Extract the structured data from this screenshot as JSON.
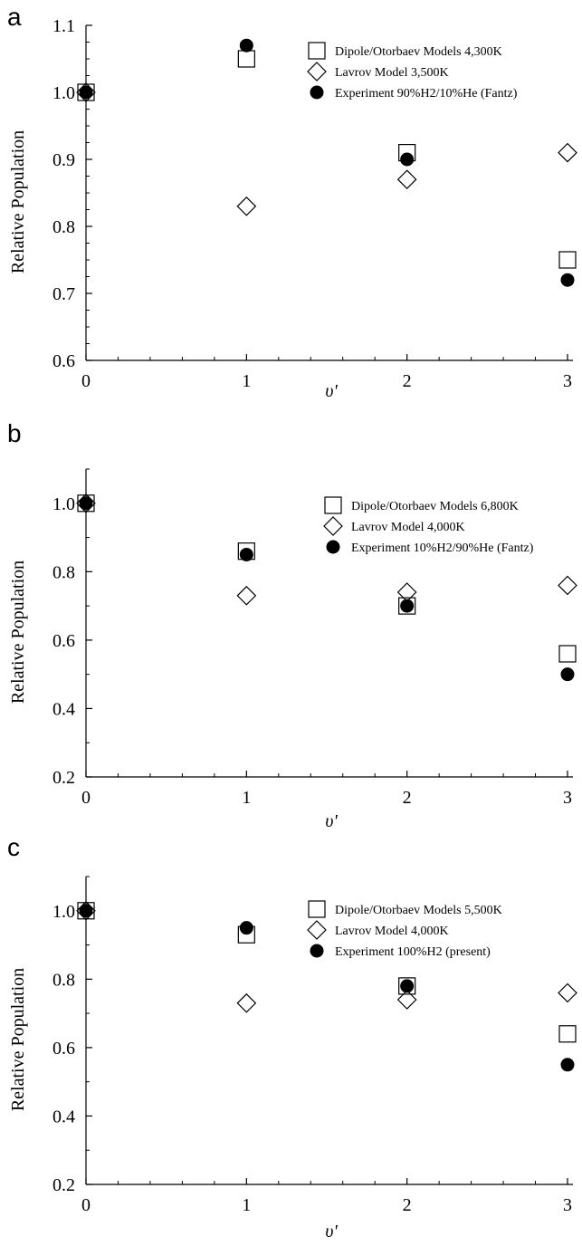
{
  "chart_data": [
    {
      "type": "scatter",
      "panel_label": "a",
      "xlabel": "υ'",
      "ylabel": "Relative Population",
      "xlim": [
        0,
        3
      ],
      "ylim": [
        0.6,
        1.1
      ],
      "x_ticks": [
        "0",
        "1",
        "2",
        "3"
      ],
      "y_ticks": [
        "0.6",
        "0.7",
        "0.8",
        "0.9",
        "1.0",
        "1.1"
      ],
      "legend_position": "top-right",
      "grid": false,
      "series": [
        {
          "name": "Dipole/Otorbaev Models 4,300K",
          "marker": "square",
          "x": [
            0,
            1,
            2,
            3
          ],
          "y": [
            1.0,
            1.05,
            0.91,
            0.75
          ]
        },
        {
          "name": "Lavrov Model 3,500K",
          "marker": "diamond",
          "x": [
            0,
            1,
            2,
            3
          ],
          "y": [
            1.0,
            0.83,
            0.87,
            0.91
          ]
        },
        {
          "name": "Experiment 90%H2/10%He (Fantz)",
          "marker": "circle",
          "x": [
            0,
            1,
            2,
            3
          ],
          "y": [
            1.0,
            1.07,
            0.9,
            0.72
          ]
        }
      ]
    },
    {
      "type": "scatter",
      "panel_label": "b",
      "xlabel": "υ'",
      "ylabel": "Relative Population",
      "xlim": [
        0,
        3
      ],
      "ylim": [
        0.2,
        1.1
      ],
      "x_ticks": [
        "0",
        "1",
        "2",
        "3"
      ],
      "y_ticks": [
        "0.2",
        "0.4",
        "0.6",
        "0.8",
        "1.0"
      ],
      "legend_position": "top-right",
      "grid": false,
      "series": [
        {
          "name": "Dipole/Otorbaev Models 6,800K",
          "marker": "square",
          "x": [
            0,
            1,
            2,
            3
          ],
          "y": [
            1.0,
            0.86,
            0.7,
            0.56
          ]
        },
        {
          "name": "Lavrov Model 4,000K",
          "marker": "diamond",
          "x": [
            0,
            1,
            2,
            3
          ],
          "y": [
            1.0,
            0.73,
            0.74,
            0.76
          ]
        },
        {
          "name": "Experiment 10%H2/90%He (Fantz)",
          "marker": "circle",
          "x": [
            0,
            1,
            2,
            3
          ],
          "y": [
            1.0,
            0.85,
            0.7,
            0.5
          ]
        }
      ]
    },
    {
      "type": "scatter",
      "panel_label": "c",
      "xlabel": "υ'",
      "ylabel": "Relative Population",
      "xlim": [
        0,
        3
      ],
      "ylim": [
        0.2,
        1.1
      ],
      "x_ticks": [
        "0",
        "1",
        "2",
        "3"
      ],
      "y_ticks": [
        "0.2",
        "0.4",
        "0.6",
        "0.8",
        "1.0"
      ],
      "legend_position": "top-right",
      "grid": false,
      "series": [
        {
          "name": "Dipole/Otorbaev Models 5,500K",
          "marker": "square",
          "x": [
            0,
            1,
            2,
            3
          ],
          "y": [
            1.0,
            0.93,
            0.78,
            0.64
          ]
        },
        {
          "name": "Lavrov Model 4,000K",
          "marker": "diamond",
          "x": [
            0,
            1,
            2,
            3
          ],
          "y": [
            1.0,
            0.73,
            0.74,
            0.76
          ]
        },
        {
          "name": "Experiment 100%H2 (present)",
          "marker": "circle",
          "x": [
            0,
            1,
            2,
            3
          ],
          "y": [
            1.0,
            0.95,
            0.78,
            0.55
          ]
        }
      ]
    }
  ]
}
